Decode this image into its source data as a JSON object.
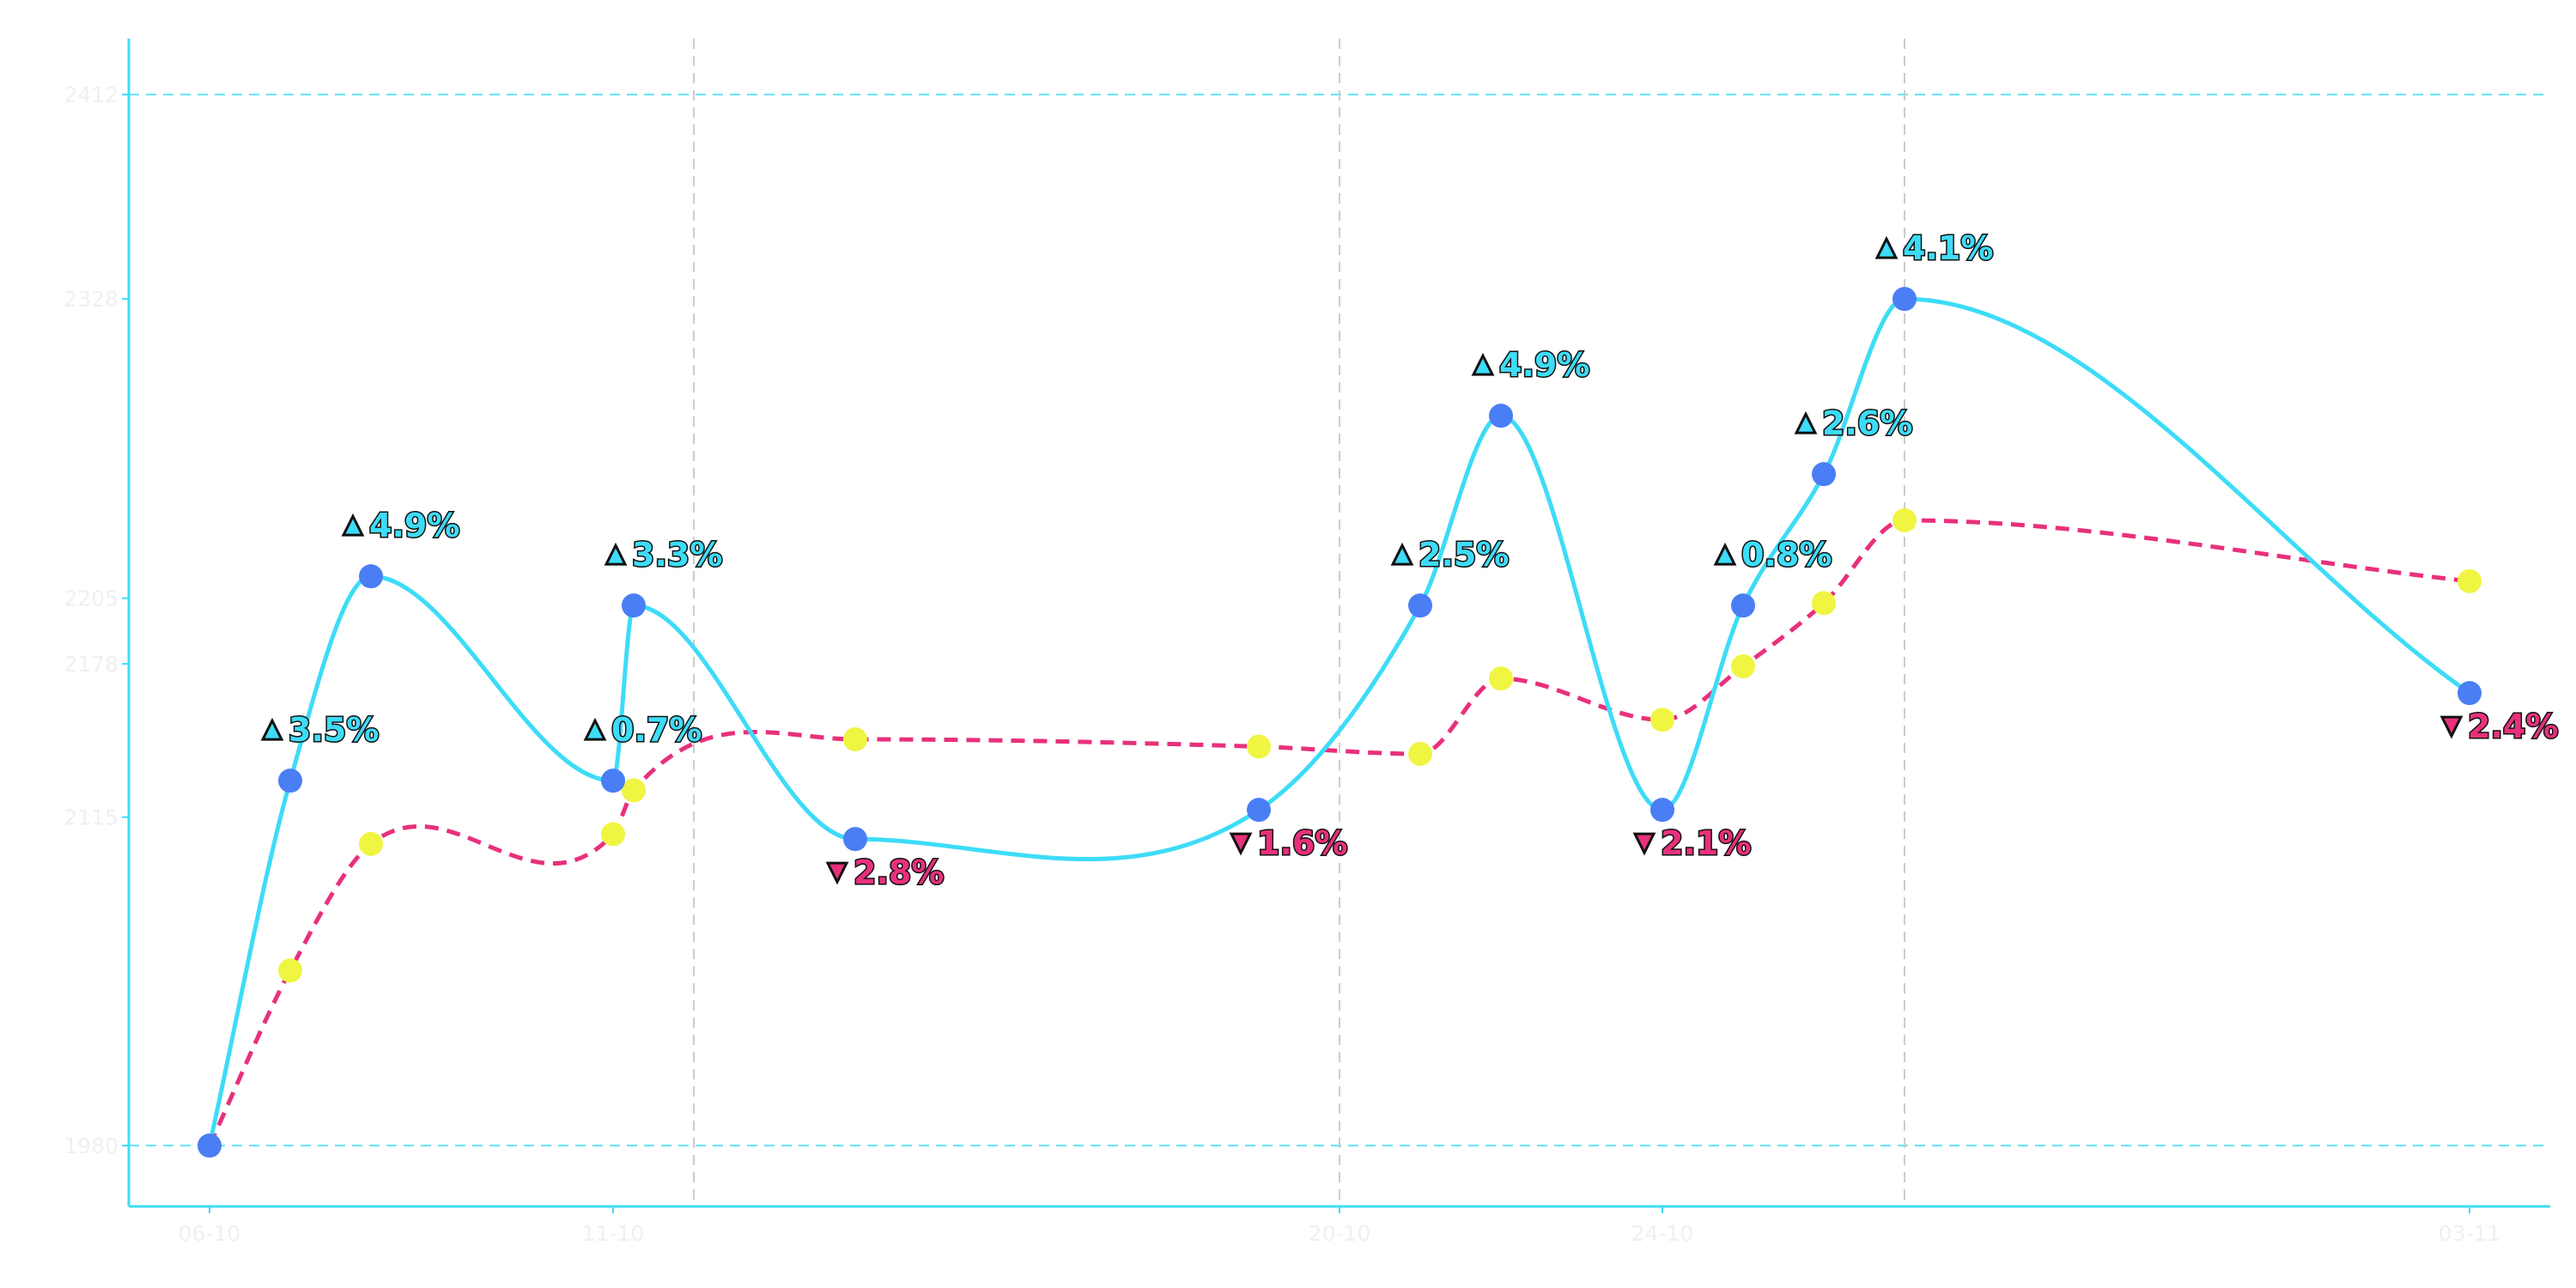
{
  "chart_data": {
    "type": "line",
    "title": "",
    "xlabel": "",
    "ylabel": "",
    "x_ticks": [
      "06-10",
      "11-10",
      "20-10",
      "24-10",
      "03-11"
    ],
    "y_ticks": [
      1980,
      2115,
      2178,
      2205,
      2328,
      2412
    ],
    "ylim": [
      1955,
      2435
    ],
    "xlim": [
      "2023-10-05",
      "2023-11-04"
    ],
    "reference_lines_y": [
      1980,
      2412
    ],
    "vertical_markers_x": [
      "2023-10-12",
      "2023-10-20",
      "2023-10-27"
    ],
    "grid": false,
    "legend": "none",
    "colors": {
      "primary_line": "#3ddcf7",
      "primary_marker": "#4a7ef5",
      "secondary_line": "#e8307c",
      "secondary_marker": "#f0f542",
      "axis": "#3ddcf7",
      "up": "#3ddcf7",
      "down": "#e8307c"
    },
    "series": [
      {
        "style": "solid",
        "points": [
          {
            "x": "2023-10-06",
            "y": 1980
          },
          {
            "x": "2023-10-07",
            "y": 2130
          },
          {
            "x": "2023-10-08",
            "y": 2214
          },
          {
            "x": "2023-10-11",
            "y": 2130
          },
          {
            "x": "2023-10-11",
            "y": 2202
          },
          {
            "x": "2023-10-14",
            "y": 2106
          },
          {
            "x": "2023-10-19",
            "y": 2118
          },
          {
            "x": "2023-10-21",
            "y": 2202
          },
          {
            "x": "2023-10-22",
            "y": 2280
          },
          {
            "x": "2023-10-24",
            "y": 2118
          },
          {
            "x": "2023-10-25",
            "y": 2202
          },
          {
            "x": "2023-10-26",
            "y": 2256
          },
          {
            "x": "2023-10-27",
            "y": 2328
          },
          {
            "x": "2023-11-03",
            "y": 2166
          }
        ]
      },
      {
        "style": "dashed",
        "points": [
          {
            "x": "2023-10-06",
            "y": 1980
          },
          {
            "x": "2023-10-07",
            "y": 2052
          },
          {
            "x": "2023-10-08",
            "y": 2104
          },
          {
            "x": "2023-10-11",
            "y": 2108
          },
          {
            "x": "2023-10-11",
            "y": 2126
          },
          {
            "x": "2023-10-14",
            "y": 2147
          },
          {
            "x": "2023-10-19",
            "y": 2144
          },
          {
            "x": "2023-10-21",
            "y": 2141
          },
          {
            "x": "2023-10-22",
            "y": 2172
          },
          {
            "x": "2023-10-24",
            "y": 2155
          },
          {
            "x": "2023-10-25",
            "y": 2177
          },
          {
            "x": "2023-10-26",
            "y": 2203
          },
          {
            "x": "2023-10-27",
            "y": 2237
          },
          {
            "x": "2023-11-03",
            "y": 2212
          }
        ]
      }
    ],
    "annotations": [
      {
        "point": 1,
        "dir": "up",
        "text": "3.5%"
      },
      {
        "point": 2,
        "dir": "up",
        "text": "4.9%"
      },
      {
        "point": 3,
        "dir": "up",
        "text": "0.7%"
      },
      {
        "point": 4,
        "dir": "up",
        "text": "3.3%"
      },
      {
        "point": 5,
        "dir": "down",
        "text": "2.8%"
      },
      {
        "point": 6,
        "dir": "down",
        "text": "1.6%"
      },
      {
        "point": 7,
        "dir": "up",
        "text": "2.5%"
      },
      {
        "point": 8,
        "dir": "up",
        "text": "4.9%"
      },
      {
        "point": 9,
        "dir": "down",
        "text": "2.1%"
      },
      {
        "point": 10,
        "dir": "up",
        "text": "0.8%"
      },
      {
        "point": 11,
        "dir": "up",
        "text": "2.6%"
      },
      {
        "point": 12,
        "dir": "up",
        "text": "4.1%"
      },
      {
        "point": 13,
        "dir": "down",
        "text": "2.4%"
      }
    ]
  }
}
